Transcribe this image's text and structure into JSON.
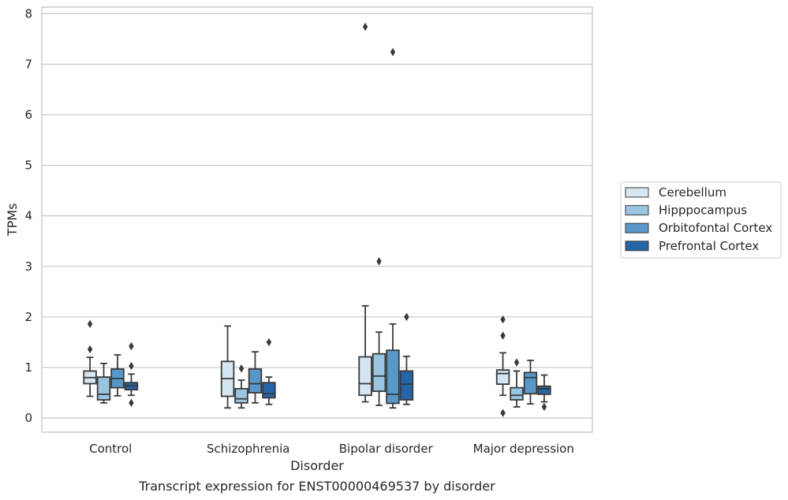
{
  "chart_data": {
    "type": "box",
    "title": "Transcript expression for ENST00000469537 by disorder",
    "xlabel": "Disorder",
    "ylabel": "TPMs",
    "ylim": [
      -0.28,
      8.13
    ],
    "yticks": [
      0,
      1,
      2,
      3,
      4,
      5,
      6,
      7,
      8
    ],
    "categories": [
      "Control",
      "Schizophrenia",
      "Bipolar disorder",
      "Major depression"
    ],
    "grid": true,
    "legend_position": "right",
    "series": [
      {
        "name": "Cerebellum",
        "color": "#d6e5f2",
        "boxes": [
          {
            "whislo": 0.43,
            "q1": 0.68,
            "med": 0.8,
            "q3": 0.93,
            "whishi": 1.2,
            "fliers": [
              1.86,
              1.36
            ]
          },
          {
            "whislo": 0.2,
            "q1": 0.43,
            "med": 0.78,
            "q3": 1.12,
            "whishi": 1.82,
            "fliers": []
          },
          {
            "whislo": 0.32,
            "q1": 0.45,
            "med": 0.68,
            "q3": 1.21,
            "whishi": 2.22,
            "fliers": [
              7.74
            ]
          },
          {
            "whislo": 0.45,
            "q1": 0.67,
            "med": 0.88,
            "q3": 0.95,
            "whishi": 1.29,
            "fliers": [
              1.95,
              1.63,
              0.1
            ]
          }
        ]
      },
      {
        "name": "Hipppocampus",
        "color": "#9ac5e1",
        "boxes": [
          {
            "whislo": 0.3,
            "q1": 0.36,
            "med": 0.47,
            "q3": 0.81,
            "whishi": 1.08,
            "fliers": []
          },
          {
            "whislo": 0.2,
            "q1": 0.3,
            "med": 0.38,
            "q3": 0.58,
            "whishi": 0.75,
            "fliers": [
              0.98
            ]
          },
          {
            "whislo": 0.25,
            "q1": 0.53,
            "med": 0.83,
            "q3": 1.27,
            "whishi": 1.7,
            "fliers": [
              3.1
            ]
          },
          {
            "whislo": 0.22,
            "q1": 0.36,
            "med": 0.45,
            "q3": 0.6,
            "whishi": 0.93,
            "fliers": [
              1.1
            ]
          }
        ]
      },
      {
        "name": "Orbitofontal Cortex",
        "color": "#5898c9",
        "boxes": [
          {
            "whislo": 0.44,
            "q1": 0.6,
            "med": 0.78,
            "q3": 0.97,
            "whishi": 1.25,
            "fliers": []
          },
          {
            "whislo": 0.3,
            "q1": 0.5,
            "med": 0.68,
            "q3": 0.97,
            "whishi": 1.31,
            "fliers": []
          },
          {
            "whislo": 0.2,
            "q1": 0.29,
            "med": 0.47,
            "q3": 1.34,
            "whishi": 1.86,
            "fliers": [
              7.24
            ]
          },
          {
            "whislo": 0.28,
            "q1": 0.48,
            "med": 0.8,
            "q3": 0.9,
            "whishi": 1.14,
            "fliers": []
          }
        ]
      },
      {
        "name": "Prefrontal Cortex",
        "color": "#2465a8",
        "boxes": [
          {
            "whislo": 0.45,
            "q1": 0.56,
            "med": 0.64,
            "q3": 0.7,
            "whishi": 0.87,
            "fliers": [
              1.42,
              1.03,
              0.3
            ]
          },
          {
            "whislo": 0.27,
            "q1": 0.4,
            "med": 0.48,
            "q3": 0.7,
            "whishi": 0.81,
            "fliers": [
              1.5
            ]
          },
          {
            "whislo": 0.27,
            "q1": 0.36,
            "med": 0.67,
            "q3": 0.93,
            "whishi": 1.22,
            "fliers": [
              2.0
            ]
          },
          {
            "whislo": 0.32,
            "q1": 0.47,
            "med": 0.58,
            "q3": 0.63,
            "whishi": 0.85,
            "fliers": [
              0.22
            ]
          }
        ]
      }
    ]
  }
}
